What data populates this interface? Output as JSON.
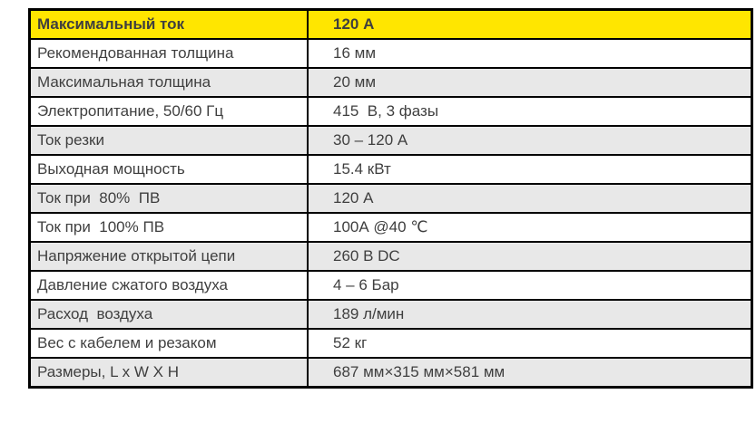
{
  "table": {
    "colors": {
      "header_bg": "#ffe600",
      "stripe_bg": "#e8e8e8",
      "row_bg": "#ffffff",
      "border": "#000000",
      "text": "#3f3f3f"
    },
    "columns": [
      "parameter",
      "value"
    ],
    "rows": [
      {
        "header": true,
        "label": "Максимальный ток",
        "value": "120 А"
      },
      {
        "header": false,
        "label": "Рекомендованная толщина",
        "value": "16 мм"
      },
      {
        "header": false,
        "label": "Максимальная толщина",
        "value": "20 мм"
      },
      {
        "header": false,
        "label": "Электропитание, 50/60 Гц",
        "value": "415  В, 3 фазы"
      },
      {
        "header": false,
        "label": "Ток резки",
        "value": "30 – 120 А"
      },
      {
        "header": false,
        "label": "Выходная мощность",
        "value": "15.4 кВт"
      },
      {
        "header": false,
        "label": "Ток при  80%  ПВ",
        "value": "120 А"
      },
      {
        "header": false,
        "label": "Ток при  100% ПВ",
        "value": "100А @40 ℃"
      },
      {
        "header": false,
        "label": "Напряжение открытой цепи",
        "value": "260 В DC"
      },
      {
        "header": false,
        "label": "Давление сжатого воздуха",
        "value": "4 – 6 Бар"
      },
      {
        "header": false,
        "label": "Расход  воздуха",
        "value": "189 л/мин"
      },
      {
        "header": false,
        "label": "Вес с кабелем и резаком",
        "value": "52 кг"
      },
      {
        "header": false,
        "label": "Размеры, L x W X H",
        "value": "687 мм×315 мм×581 мм"
      }
    ]
  }
}
